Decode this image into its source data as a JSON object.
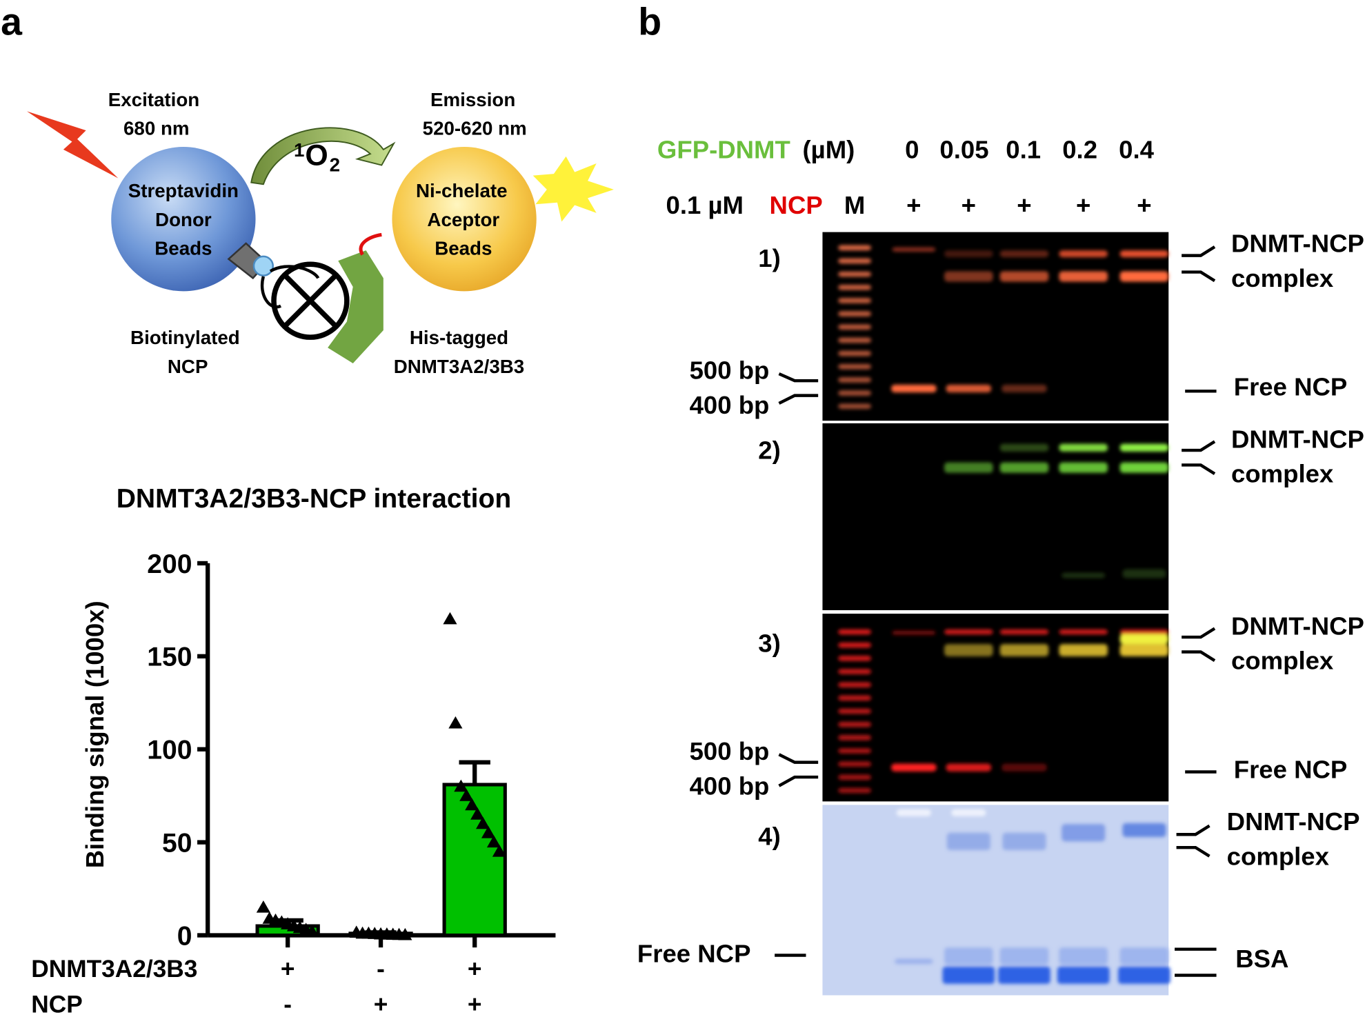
{
  "panel_labels": [
    "a",
    "b"
  ],
  "diagram": {
    "excitation": [
      "Excitation",
      "680 nm"
    ],
    "donor": [
      "Streptavidin",
      "Donor",
      "Beads"
    ],
    "emission": [
      "Emission",
      "520-620 nm"
    ],
    "acceptor": [
      "Ni-chelate",
      "Aceptor",
      "Beads"
    ],
    "ncp": [
      "Biotinylated",
      "NCP"
    ],
    "dnmt": [
      "His-tagged",
      "DNMT3A2/3B3"
    ],
    "singlet_oxygen": {
      "sup": "1",
      "base": "O",
      "sub": "2"
    }
  },
  "chart_data": {
    "type": "bar",
    "title": "DNMT3A2/3B3-NCP interaction",
    "y_label": "Binding signal (1000x)",
    "categories": [
      null,
      null,
      null
    ],
    "values": [
      5,
      1,
      81
    ],
    "errors": [
      3,
      0.5,
      12
    ],
    "points": [
      [
        15,
        9,
        8,
        7,
        6,
        5,
        4,
        3,
        2
      ],
      [
        1.5,
        1,
        1,
        0.8,
        0.6,
        0.5,
        0.4,
        0.3,
        0.2
      ],
      [
        170,
        114,
        80,
        75,
        70,
        65,
        60,
        55,
        50,
        45
      ]
    ],
    "color": "#00c000",
    "ylim": [
      0,
      200
    ],
    "yticks": [
      0,
      50,
      100,
      150,
      200
    ],
    "condition_rows": [
      {
        "name": "DNMT3A2/3B3",
        "values": [
          "+",
          "-",
          "+"
        ]
      },
      {
        "name": "NCP",
        "values": [
          "-",
          "+",
          "+"
        ]
      }
    ]
  },
  "gel": {
    "protein_row": {
      "name": "GFP-DNMT",
      "unit": "(µM)",
      "values": [
        "0",
        "0.05",
        "0.1",
        "0.2",
        "0.4"
      ]
    },
    "ncp_row": {
      "conc": "0.1 µM",
      "name": "NCP",
      "marker": "M",
      "values": [
        "+",
        "+",
        "+",
        "+",
        "+"
      ]
    },
    "panels": [
      {
        "label": "1)",
        "right_labels": [
          "DNMT-NCP",
          "complex",
          "Free NCP"
        ],
        "left_labels": [
          "500 bp",
          "400 bp"
        ]
      },
      {
        "label": "2)",
        "right_labels": [
          "DNMT-NCP",
          "complex"
        ]
      },
      {
        "label": "3)",
        "right_labels": [
          "DNMT-NCP",
          "complex",
          "Free NCP"
        ],
        "left_labels": [
          "500 bp",
          "400 bp"
        ]
      },
      {
        "label": "4)",
        "right_labels": [
          "DNMT-NCP",
          "complex",
          "BSA"
        ],
        "left_labels": [
          "Free NCP"
        ]
      }
    ]
  }
}
